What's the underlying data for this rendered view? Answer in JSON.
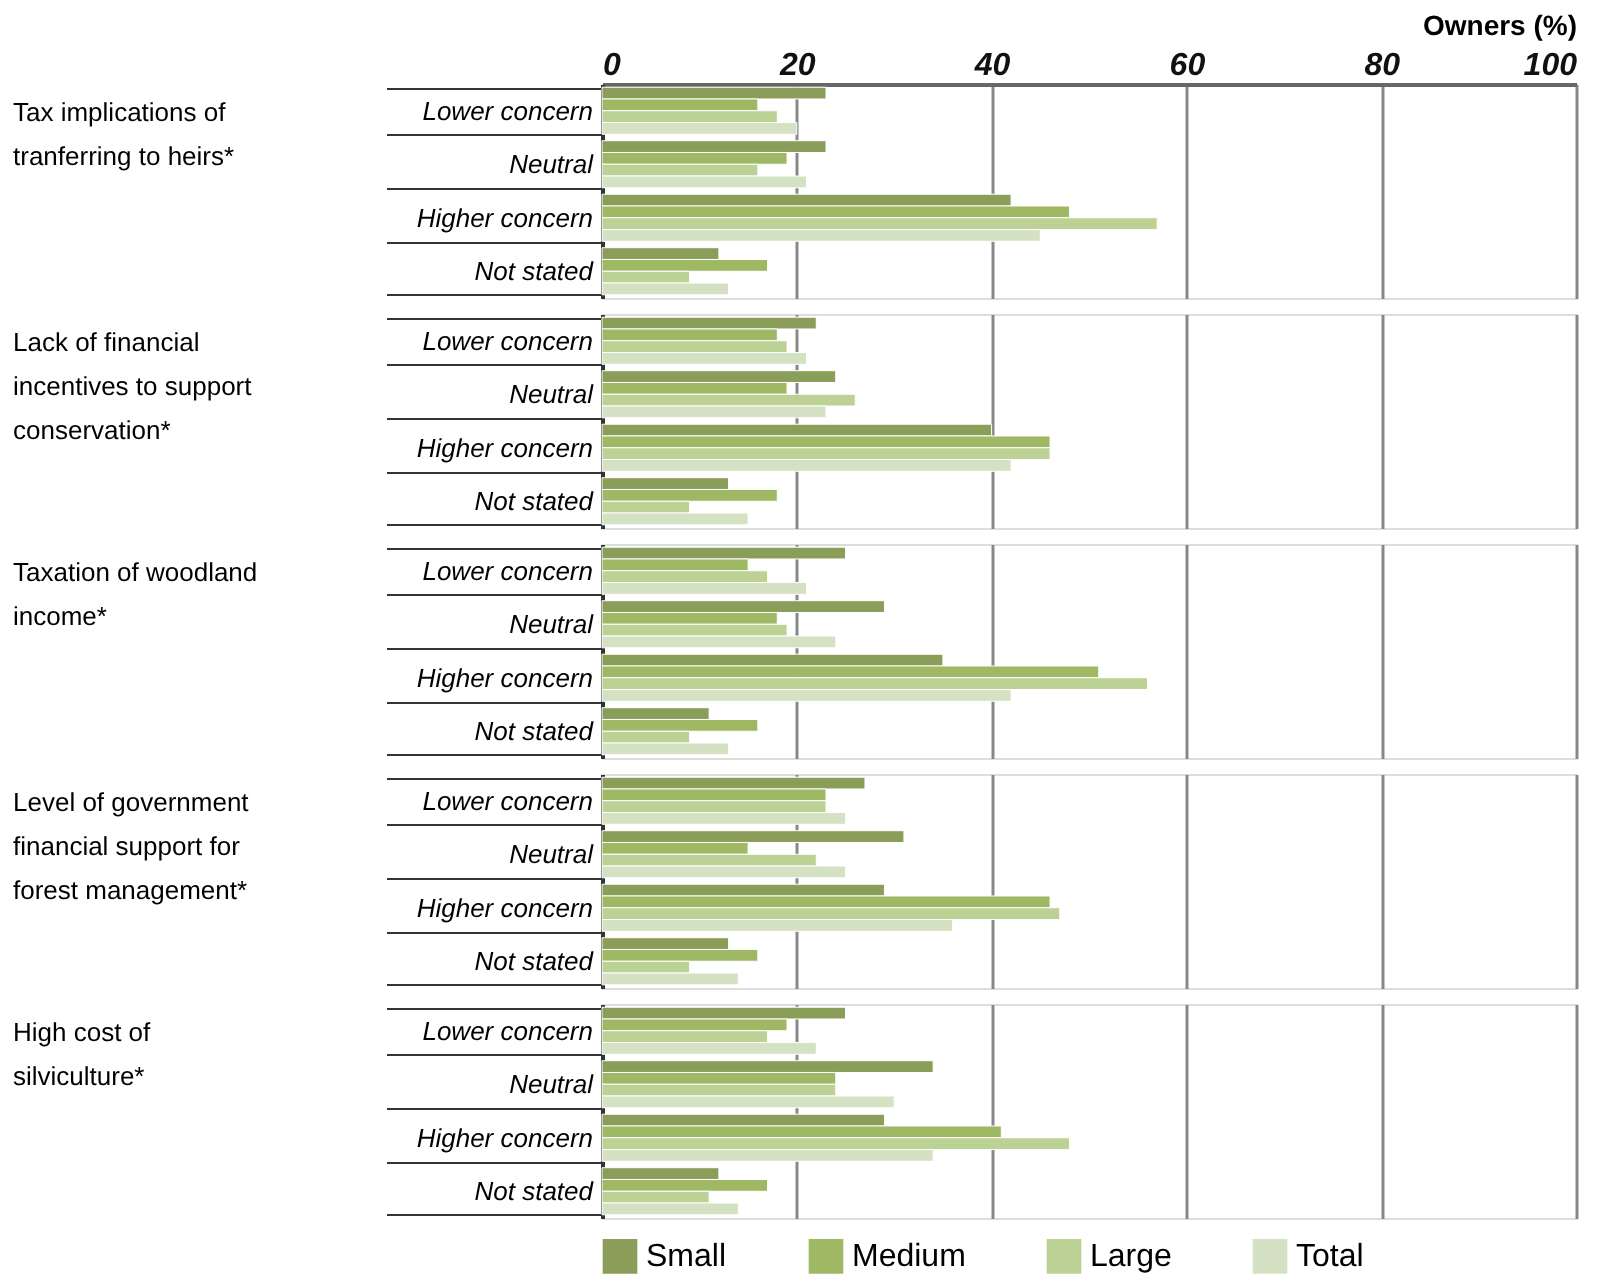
{
  "chart_data": [
    {
      "type": "bar",
      "orientation": "horizontal",
      "ylabel": "Tax implications of tranferring to heirs*",
      "xlabel": "Owners (%)",
      "categories": [
        "Lower concern",
        "Neutral",
        "Higher concern",
        "Not stated"
      ],
      "xlim": [
        0,
        100
      ],
      "xticks": [
        0,
        20,
        40,
        60,
        80,
        100
      ],
      "grid": "x",
      "series": [
        {
          "color": "#8a9e5a",
          "values": [
            23,
            23,
            42,
            12
          ]
        },
        {
          "color": "#9fb864",
          "values": [
            16,
            19,
            48,
            17
          ]
        },
        {
          "color": "#bcd194",
          "values": [
            18,
            16,
            57,
            9
          ]
        },
        {
          "color": "#d5e1c3",
          "values": [
            20,
            21,
            45,
            13
          ]
        }
      ]
    },
    {
      "type": "bar",
      "orientation": "horizontal",
      "ylabel": "Lack of financial incentives to support conservation*",
      "categories": [
        "Lower concern",
        "Neutral",
        "Higher concern",
        "Not stated"
      ],
      "xlim": [
        0,
        100
      ],
      "xticks": [
        0,
        20,
        40,
        60,
        80,
        100
      ],
      "tick_labels": "y",
      "grid": "x",
      "series": [
        {
          "color": "#8a9e5a",
          "values": [
            22,
            24,
            40,
            13
          ]
        },
        {
          "color": "#9fb864",
          "values": [
            18,
            19,
            46,
            18
          ]
        },
        {
          "color": "#bcd194",
          "values": [
            19,
            26,
            46,
            9
          ]
        },
        {
          "color": "#d5e1c3",
          "values": [
            21,
            23,
            42,
            15
          ]
        }
      ]
    },
    {
      "type": "bar",
      "orientation": "horizontal",
      "ylabel": "Taxation of woodland income*",
      "categories": [
        "Lower concern",
        "Neutral",
        "Higher concern",
        "Not stated"
      ],
      "xlim": [
        0,
        100
      ],
      "xticks": [
        0,
        20,
        40,
        60,
        80,
        100
      ],
      "tick_labels": "y",
      "grid": "x",
      "series": [
        {
          "color": "#8a9e5a",
          "values": [
            25,
            29,
            35,
            11
          ]
        },
        {
          "color": "#9fb864",
          "values": [
            15,
            18,
            51,
            16
          ]
        },
        {
          "color": "#bcd194",
          "values": [
            17,
            19,
            56,
            9
          ]
        },
        {
          "color": "#d5e1c3",
          "values": [
            21,
            24,
            42,
            13
          ]
        }
      ]
    },
    {
      "type": "bar",
      "orientation": "horizontal",
      "ylabel": "Level of government financial support for forest management*",
      "categories": [
        "Lower concern",
        "Neutral",
        "Higher concern",
        "Not stated"
      ],
      "xlim": [
        0,
        100
      ],
      "xticks": [
        0,
        20,
        40,
        60,
        80,
        100
      ],
      "tick_labels": "y",
      "grid": "x",
      "series": [
        {
          "color": "#8a9e5a",
          "values": [
            27,
            31,
            29,
            13
          ]
        },
        {
          "color": "#9fb864",
          "values": [
            23,
            15,
            46,
            16
          ]
        },
        {
          "color": "#bcd194",
          "values": [
            23,
            22,
            47,
            9
          ]
        },
        {
          "color": "#d5e1c3",
          "values": [
            25,
            25,
            36,
            14
          ]
        }
      ]
    },
    {
      "type": "bar",
      "orientation": "horizontal",
      "ylabel": "High cost of silviculture*",
      "categories": [
        "Lower concern",
        "Neutral",
        "Higher concern",
        "Not stated"
      ],
      "xlim": [
        0,
        100
      ],
      "xticks": [
        0,
        20,
        40,
        60,
        80,
        100
      ],
      "tick_labels": "y",
      "grid": "x",
      "legend": "bottom",
      "series": [
        {
          "name": "Small",
          "color": "#8a9e5a",
          "values": [
            25,
            34,
            29,
            12
          ]
        },
        {
          "name": "Medium",
          "color": "#9fb864",
          "values": [
            19,
            24,
            41,
            17
          ]
        },
        {
          "name": "Large",
          "color": "#bcd194",
          "values": [
            17,
            24,
            48,
            11
          ]
        },
        {
          "name": "Total",
          "color": "#d5e1c3",
          "values": [
            22,
            30,
            34,
            14
          ]
        }
      ]
    }
  ]
}
